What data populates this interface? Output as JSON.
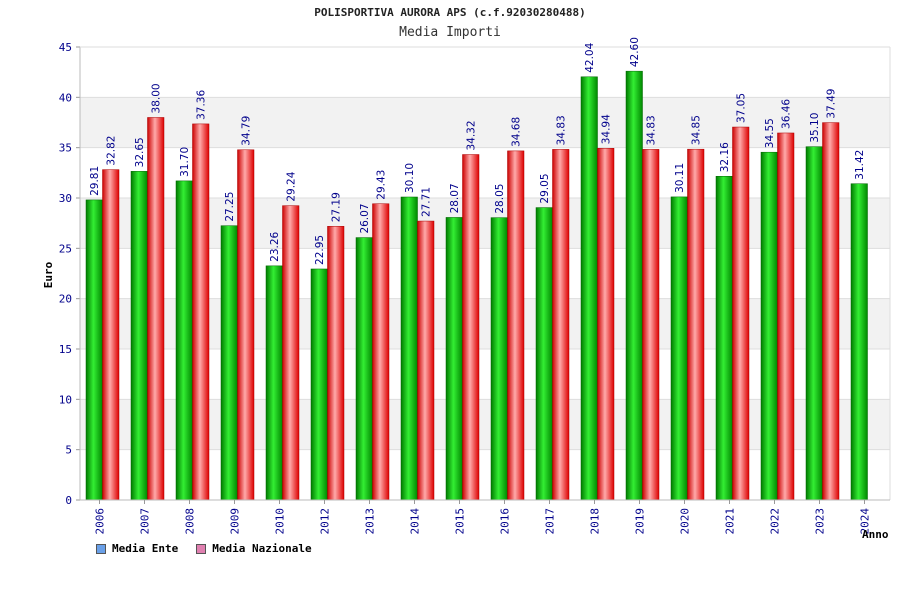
{
  "chart_data": {
    "type": "bar",
    "title": "POLISPORTIVA AURORA APS (c.f.92030280488)",
    "subtitle": "Media Importi",
    "ylabel": "Euro",
    "xlabel": "Anno",
    "ylim": [
      0,
      45
    ],
    "yticks": [
      0,
      5,
      10,
      15,
      20,
      25,
      30,
      35,
      40,
      45
    ],
    "grid": true,
    "legend_position": "bottom-left",
    "categories": [
      "2006",
      "2007",
      "2008",
      "2009",
      "2010",
      "2012",
      "2013",
      "2014",
      "2015",
      "2016",
      "2017",
      "2018",
      "2019",
      "2020",
      "2021",
      "2022",
      "2023",
      "2024"
    ],
    "series": [
      {
        "name": "Media Ente",
        "color": "#00aa00",
        "legend_color": "#6aa0e8",
        "values": [
          29.81,
          32.65,
          31.7,
          27.25,
          23.26,
          22.95,
          26.07,
          30.1,
          28.07,
          28.05,
          29.05,
          42.04,
          42.6,
          30.11,
          32.16,
          34.55,
          35.1,
          31.42
        ],
        "labels": [
          "29.81",
          "32.65",
          "31.70",
          "27.25",
          "23.26",
          "22.95",
          "26.07",
          "30.10",
          "28.07",
          "28.05",
          "29.05",
          "42.04",
          "42.60",
          "30.11",
          "32.16",
          "34.55",
          "35.10",
          "31.42"
        ]
      },
      {
        "name": "Media Nazionale",
        "color": "#ee1111",
        "legend_color": "#e080b0",
        "values": [
          32.82,
          38.0,
          37.36,
          34.79,
          29.24,
          27.19,
          29.43,
          27.71,
          34.32,
          34.68,
          34.83,
          34.94,
          34.83,
          34.85,
          37.05,
          36.46,
          37.49,
          null
        ],
        "labels": [
          "32.82",
          "38.00",
          "37.36",
          "34.79",
          "29.24",
          "27.19",
          "29.43",
          "27.71",
          "34.32",
          "34.68",
          "34.83",
          "34.94",
          "34.83",
          "34.85",
          "37.05",
          "36.46",
          "37.49",
          null
        ]
      }
    ]
  }
}
